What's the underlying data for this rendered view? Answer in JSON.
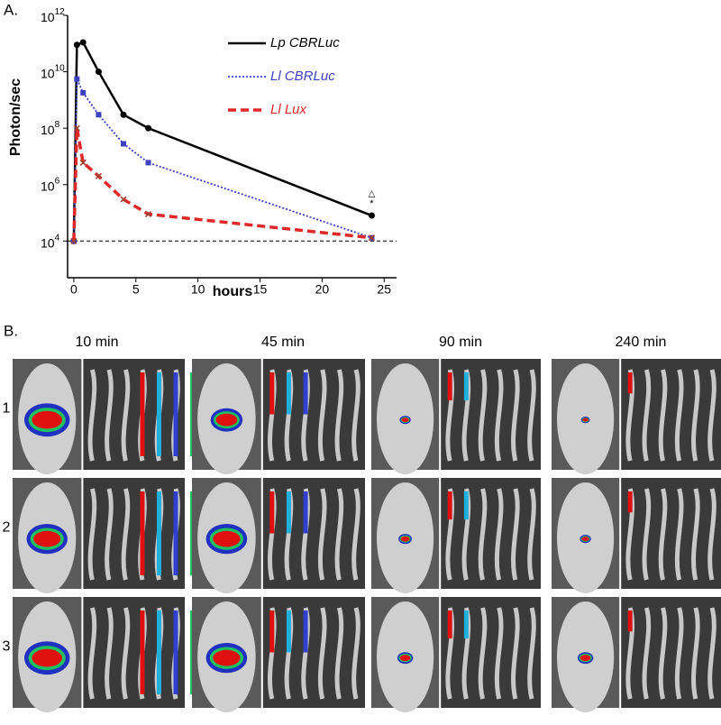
{
  "chart_data": {
    "type": "line",
    "panel_label": "A.",
    "x_label": "hours",
    "y_label": "Photon/sec",
    "log_y": true,
    "xlim": [
      -0.5,
      26
    ],
    "ylim": [
      500,
      1000000000000
    ],
    "xticks": [
      0,
      5,
      10,
      15,
      20,
      25
    ],
    "yticks": [
      {
        "value": 10000,
        "label": "10",
        "sup": "4"
      },
      {
        "value": 1000000,
        "label": "10",
        "sup": "6"
      },
      {
        "value": 100000000,
        "label": "10",
        "sup": "8"
      },
      {
        "value": 10000000000,
        "label": "10",
        "sup": "10"
      },
      {
        "value": 1000000000000,
        "label": "10",
        "sup": "12"
      }
    ],
    "reference_line": 10000,
    "x": [
      0,
      0.25,
      0.75,
      2,
      4,
      6,
      24
    ],
    "series": [
      {
        "name": "Lp CBRLuc",
        "color": "#000000",
        "dash": "solid",
        "values": [
          10000,
          90000000000,
          110000000000,
          10000000000,
          300000000,
          100000000,
          80000
        ]
      },
      {
        "name": "Ll CBRLuc",
        "color": "#3b3fbf",
        "dash": "dotted",
        "values": [
          10000,
          5500000000,
          1800000000,
          300000000,
          28000000,
          6000000,
          13000
        ]
      },
      {
        "name": "Ll Lux",
        "color": "#e02828",
        "dash": "dashed",
        "values": [
          10000,
          100000000,
          6000000,
          2000000,
          300000,
          90000,
          13000
        ]
      }
    ],
    "annotations": [
      "△",
      "*"
    ]
  },
  "panel_b": {
    "label": "B.",
    "columns": [
      "10 min",
      "45 min",
      "90 min",
      "240 min"
    ],
    "rows": [
      "1",
      "2",
      "3"
    ]
  }
}
